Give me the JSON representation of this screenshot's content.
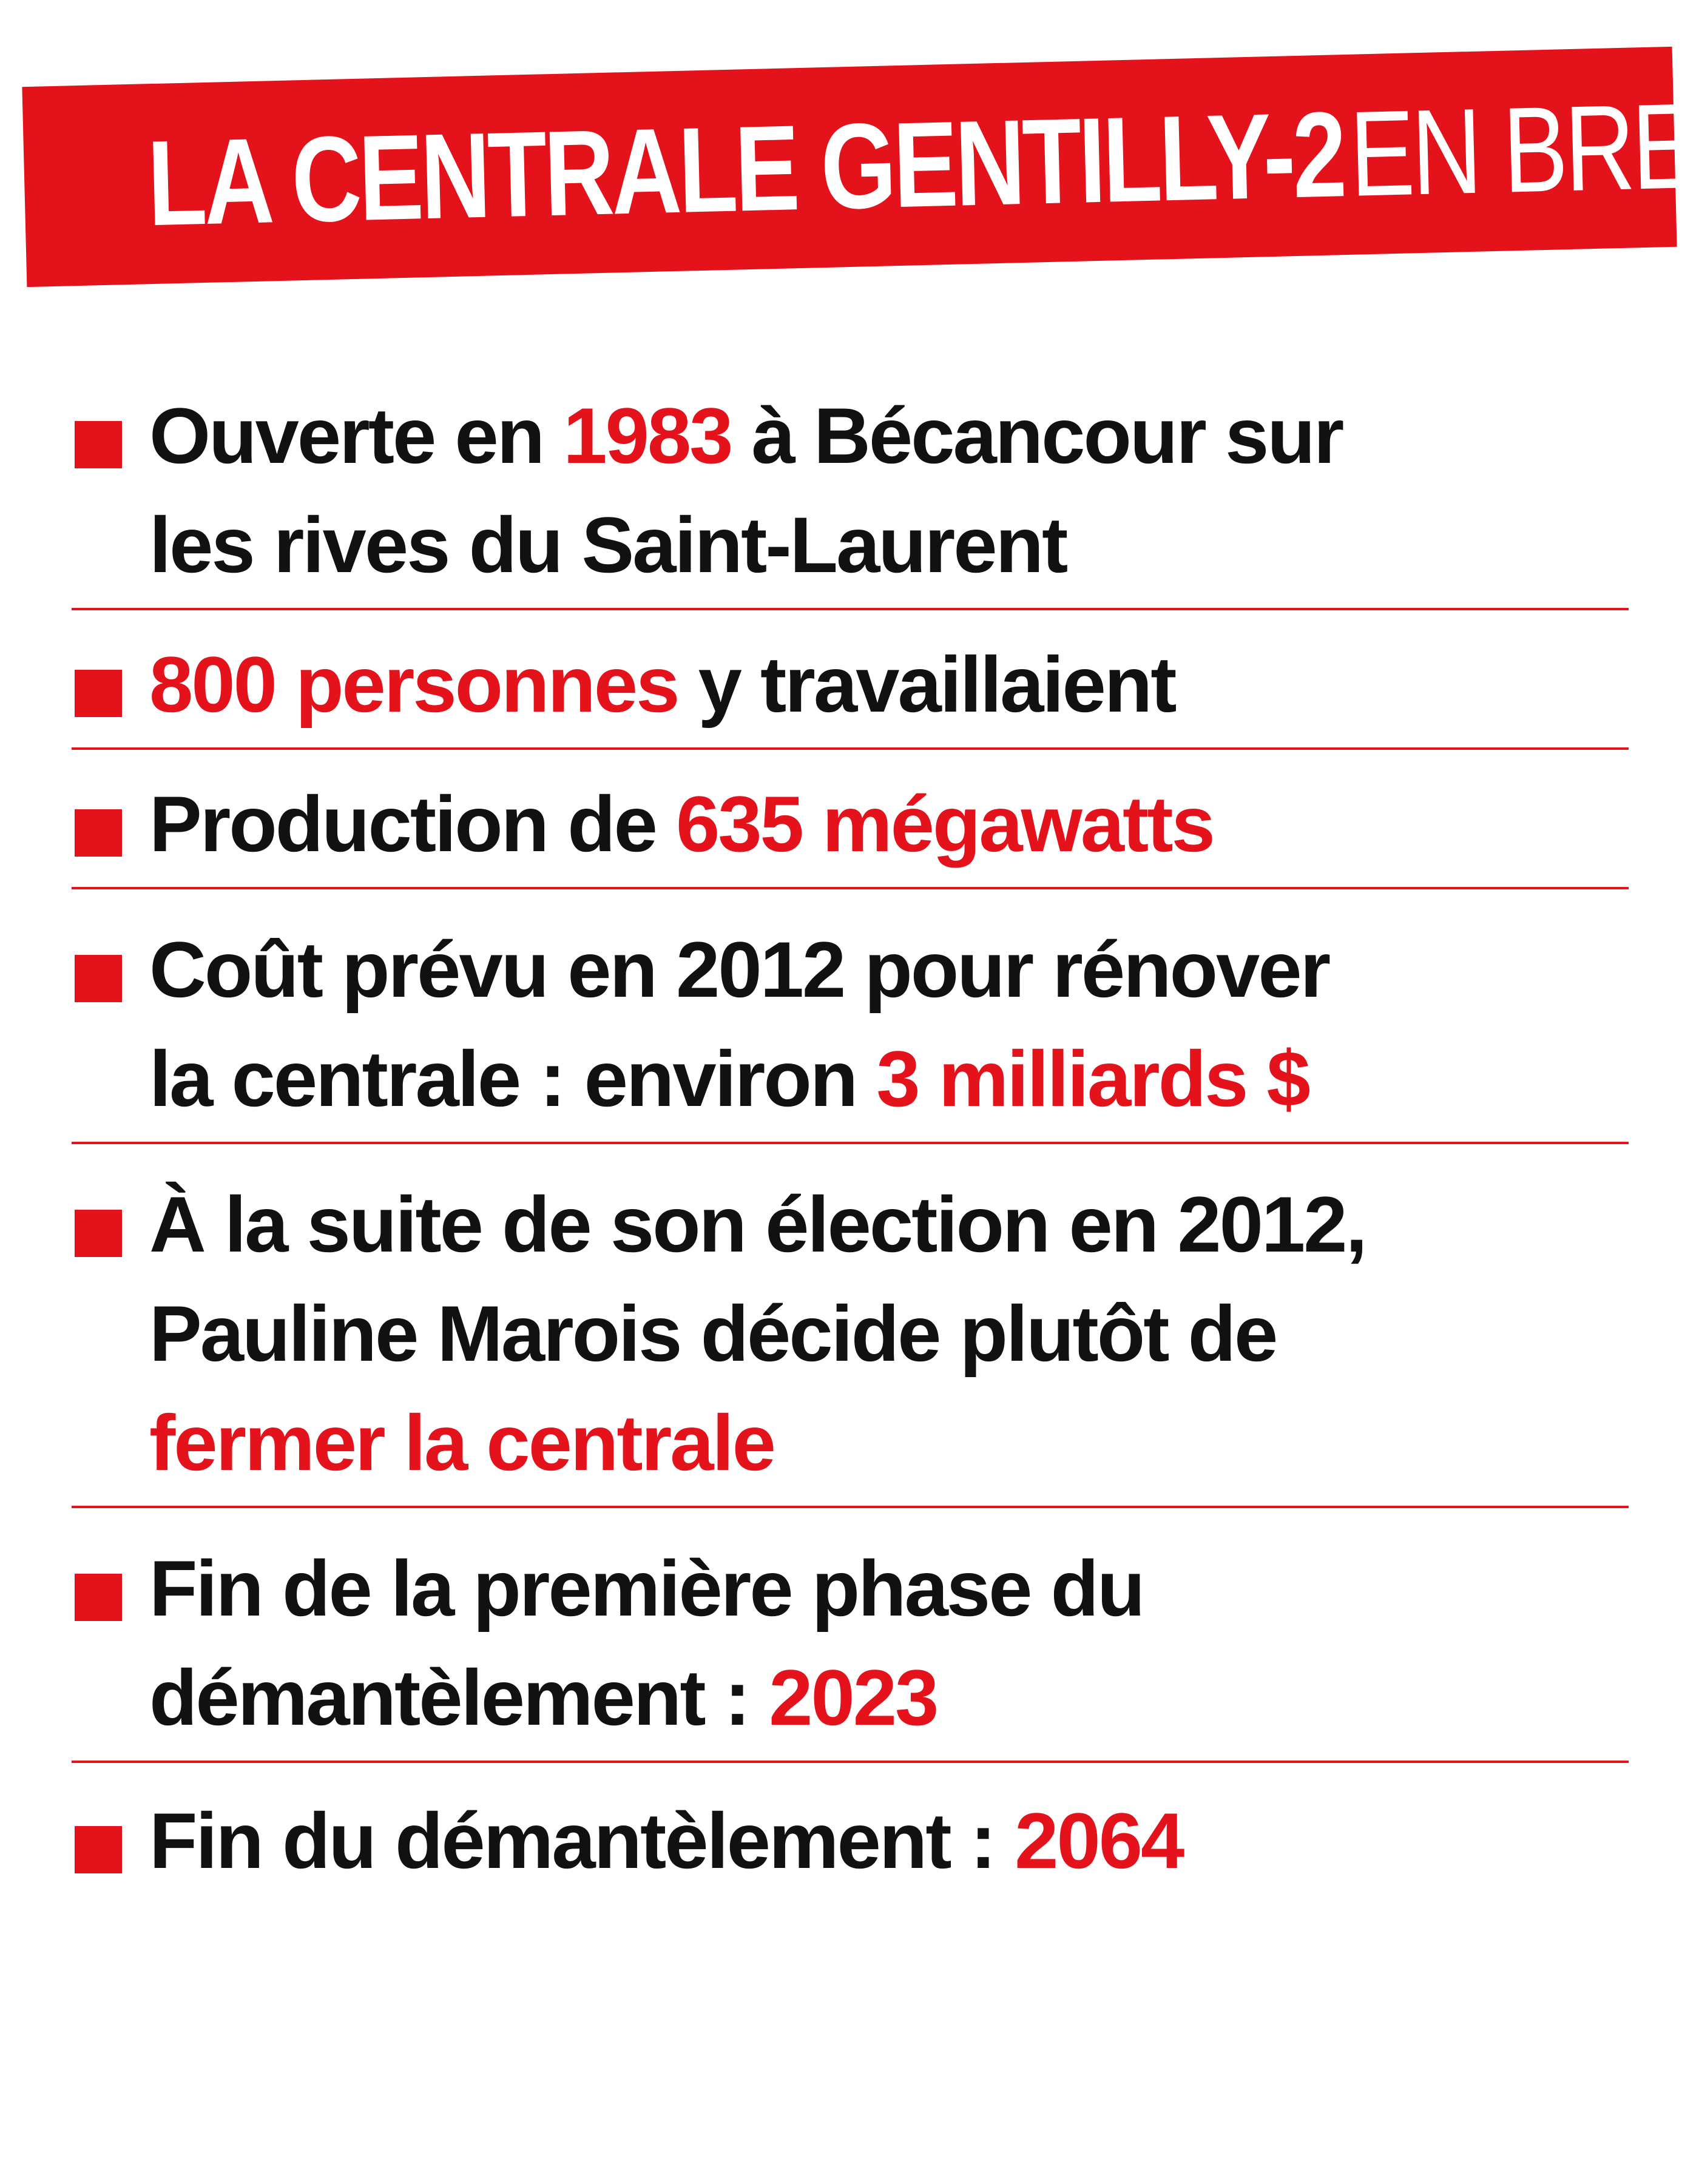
{
  "title": {
    "bold": "LA CENTRALE GENTILLY-2",
    "light": "EN BREF"
  },
  "items": [
    {
      "lines": [
        [
          {
            "t": "Ouverte en "
          },
          {
            "t": "1983",
            "hl": true
          },
          {
            "t": " à Bécancour sur"
          }
        ],
        [
          {
            "t": "les rives du Saint-Laurent"
          }
        ]
      ]
    },
    {
      "lines": [
        [
          {
            "t": "800 personnes",
            "hl": true
          },
          {
            "t": " y travaillaient"
          }
        ]
      ]
    },
    {
      "lines": [
        [
          {
            "t": "Production de "
          },
          {
            "t": "635 mégawatts",
            "hl": true
          }
        ]
      ]
    },
    {
      "lines": [
        [
          {
            "t": "Coût prévu en 2012 pour rénover"
          }
        ],
        [
          {
            "t": "la centrale : environ "
          },
          {
            "t": "3 milliards $",
            "hl": true
          }
        ]
      ]
    },
    {
      "lines": [
        [
          {
            "t": "À la suite de son élection en 2012,"
          }
        ],
        [
          {
            "t": "Pauline Marois décide plutôt de"
          }
        ],
        [
          {
            "t": "fermer la centrale",
            "hl": true
          }
        ]
      ]
    },
    {
      "lines": [
        [
          {
            "t": "Fin de la première phase du"
          }
        ],
        [
          {
            "t": "démantèlement : "
          },
          {
            "t": "2023",
            "hl": true
          }
        ]
      ]
    },
    {
      "lines": [
        [
          {
            "t": "Fin du démantèlement : "
          },
          {
            "t": "2064",
            "hl": true
          }
        ]
      ]
    }
  ],
  "colors": {
    "accent": "#e3121b",
    "text": "#111111",
    "background": "#ffffff"
  }
}
